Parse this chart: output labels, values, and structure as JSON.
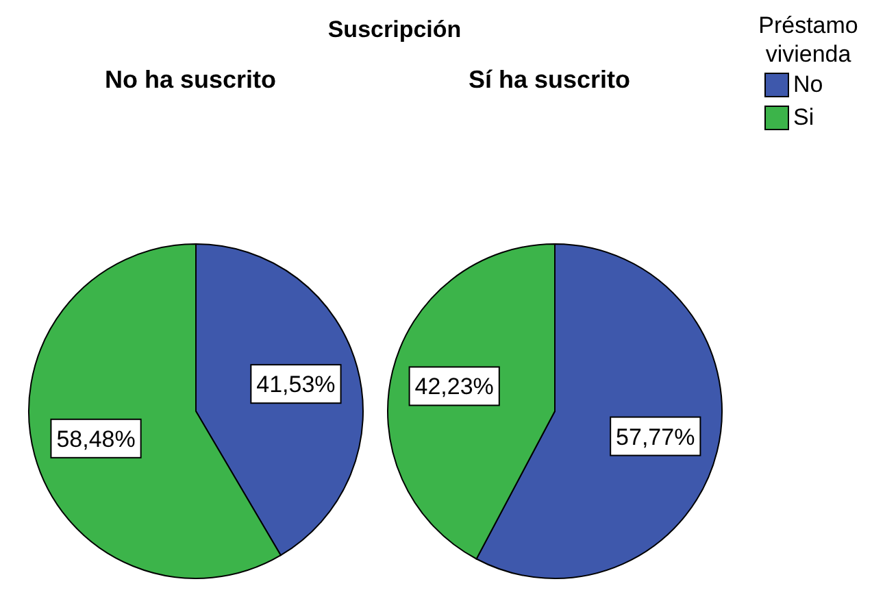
{
  "chart_data": [
    {
      "type": "pie",
      "title": "Suscripción",
      "subtitle": "No ha suscrito",
      "categories": [
        null,
        null
      ],
      "values": [
        41.53,
        58.48
      ],
      "colors": [
        "#3e58ac",
        "#3cb44a"
      ],
      "value_labels": [
        "41,53%",
        "58,48%"
      ]
    },
    {
      "type": "pie",
      "subtitle": "Sí ha suscrito",
      "categories": [
        "No",
        "Si"
      ],
      "values": [
        57.77,
        42.23
      ],
      "colors": [
        "#3e58ac",
        "#3cb44a"
      ],
      "value_labels": [
        "57,77%",
        "42,23%"
      ],
      "legend": "top right",
      "legend_title": "Préstamo vivienda"
    }
  ]
}
